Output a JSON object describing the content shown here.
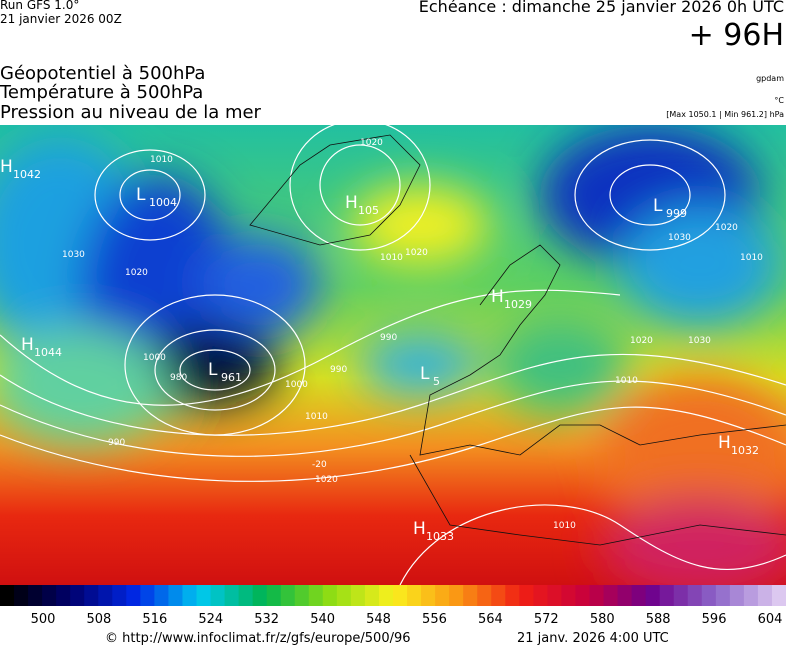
{
  "header": {
    "run": "Run GFS 1.0°",
    "run_date": "21 janvier 2026 00Z",
    "forecast": "Echéance : dimanche 25 janvier 2026 0h UTC",
    "lead": "+ 96H",
    "fields": [
      "Géopotentiel à 500hPa",
      "Température à 500hPa",
      "Pression au niveau de la mer"
    ],
    "units": [
      "gpdam",
      "°C",
      "[Max 1050.1 | Min 961.2] hPa"
    ]
  },
  "map": {
    "centers": [
      {
        "letter": "H",
        "value": "1042"
      },
      {
        "letter": "L",
        "value": "1004"
      },
      {
        "letter": "H",
        "value": "105"
      },
      {
        "letter": "L",
        "value": "999"
      },
      {
        "letter": "H",
        "value": "1029"
      },
      {
        "letter": "H",
        "value": "1044"
      },
      {
        "letter": "L",
        "value": "961"
      },
      {
        "letter": "L",
        "value": "5"
      },
      {
        "letter": "H",
        "value": "1033"
      },
      {
        "letter": "H",
        "value": "1032"
      }
    ],
    "isobar_labels": [
      "1010",
      "1020",
      "1030",
      "1020",
      "1010",
      "1000",
      "990",
      "980",
      "990",
      "1000",
      "1010",
      "1020",
      "1020",
      "1030",
      "1020",
      "1010",
      "1010",
      "1020",
      "1030",
      "990",
      "-20",
      "1010"
    ]
  },
  "legend": {
    "ticks": [
      "500",
      "508",
      "516",
      "524",
      "532",
      "540",
      "548",
      "556",
      "564",
      "572",
      "580",
      "588",
      "596",
      "604"
    ]
  },
  "footer": {
    "source": "© http://www.infoclimat.fr/z/gfs/europe/500/96",
    "generated": "21 janv. 2026  4:00 UTC"
  }
}
